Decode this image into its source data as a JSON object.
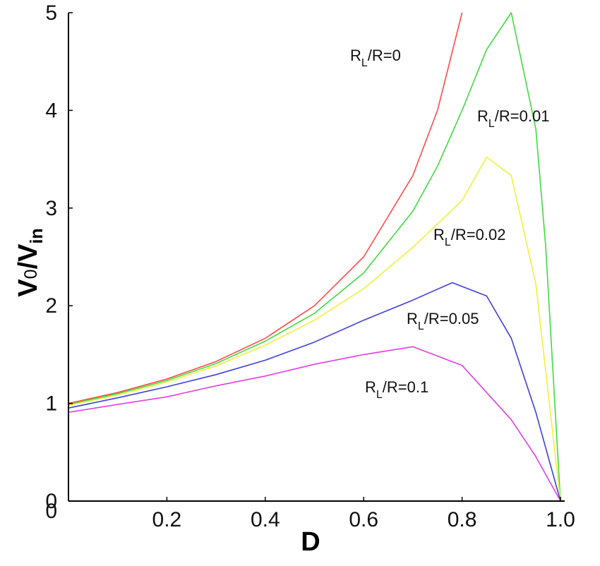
{
  "chart_data": {
    "type": "line",
    "xlabel": "D",
    "ylabel": {
      "main": "V",
      "sub0": "0",
      "mid": "/V",
      "sub1": "in"
    },
    "xlim": [
      0,
      1.0
    ],
    "ylim": [
      0,
      5
    ],
    "xticks": [
      "0",
      "0.2",
      "0.4",
      "0.6",
      "0.8",
      "1.0"
    ],
    "xtick_values": [
      0,
      0.2,
      0.4,
      0.6,
      0.8,
      1.0
    ],
    "yticks": [
      "0",
      "1",
      "2",
      "3",
      "4",
      "5"
    ],
    "ytick_values": [
      0,
      1,
      2,
      3,
      4,
      5
    ],
    "grid": false,
    "legend": "none",
    "axis_color": "#000000",
    "series": [
      {
        "name": "RL/R=0",
        "label": {
          "base": "R",
          "sub": "L",
          "rest": "/R=0"
        },
        "ratio": 0,
        "color": "#ff4a4a",
        "x": [
          0,
          0.1,
          0.2,
          0.3,
          0.4,
          0.5,
          0.6,
          0.7,
          0.75,
          0.8
        ],
        "y": [
          1.0,
          1.111,
          1.25,
          1.429,
          1.667,
          2.0,
          2.5,
          3.333,
          4.0,
          5.0
        ]
      },
      {
        "name": "RL/R=0.01",
        "label": {
          "base": "R",
          "sub": "L",
          "rest": "/R=0.01"
        },
        "ratio": 0.01,
        "color": "#3fdc3f",
        "x": [
          0,
          0.1,
          0.2,
          0.3,
          0.4,
          0.5,
          0.6,
          0.7,
          0.75,
          0.8,
          0.85,
          0.9,
          0.95,
          0.97,
          1.0
        ],
        "y": [
          0.99,
          1.099,
          1.235,
          1.408,
          1.637,
          1.923,
          2.336,
          2.968,
          3.429,
          4.0,
          4.623,
          5.0,
          3.809,
          2.605,
          0
        ]
      },
      {
        "name": "RL/R=0.02",
        "label": {
          "base": "R",
          "sub": "L",
          "rest": "/R=0.02"
        },
        "ratio": 0.02,
        "color": "#f0f03a",
        "x": [
          0,
          0.1,
          0.2,
          0.3,
          0.4,
          0.5,
          0.6,
          0.7,
          0.8,
          0.85,
          0.9,
          0.95,
          1.0
        ],
        "y": [
          0.98,
          1.087,
          1.219,
          1.384,
          1.596,
          1.852,
          2.174,
          2.598,
          3.077,
          3.522,
          3.333,
          2.222,
          0
        ]
      },
      {
        "name": "RL/R=0.05",
        "label": {
          "base": "R",
          "sub": "L",
          "rest": "/R=0.05"
        },
        "ratio": 0.05,
        "color": "#3f3fdc",
        "x": [
          0,
          0.1,
          0.2,
          0.3,
          0.4,
          0.5,
          0.6,
          0.7,
          0.78,
          0.85,
          0.9,
          0.95,
          1.0
        ],
        "y": [
          0.952,
          1.057,
          1.17,
          1.295,
          1.442,
          1.628,
          1.852,
          2.058,
          2.236,
          2.1,
          1.667,
          0.909,
          0
        ]
      },
      {
        "name": "RL/R=0.1",
        "label": {
          "base": "R",
          "sub": "L",
          "rest": "/R=0.1"
        },
        "ratio": 0.1,
        "color": "#e13fe1",
        "x": [
          0,
          0.1,
          0.2,
          0.3,
          0.4,
          0.5,
          0.6,
          0.7,
          0.8,
          0.9,
          0.95,
          1.0
        ],
        "y": [
          0.909,
          0.989,
          1.067,
          1.18,
          1.28,
          1.4,
          1.5,
          1.58,
          1.389,
          0.833,
          0.455,
          0
        ]
      }
    ]
  }
}
